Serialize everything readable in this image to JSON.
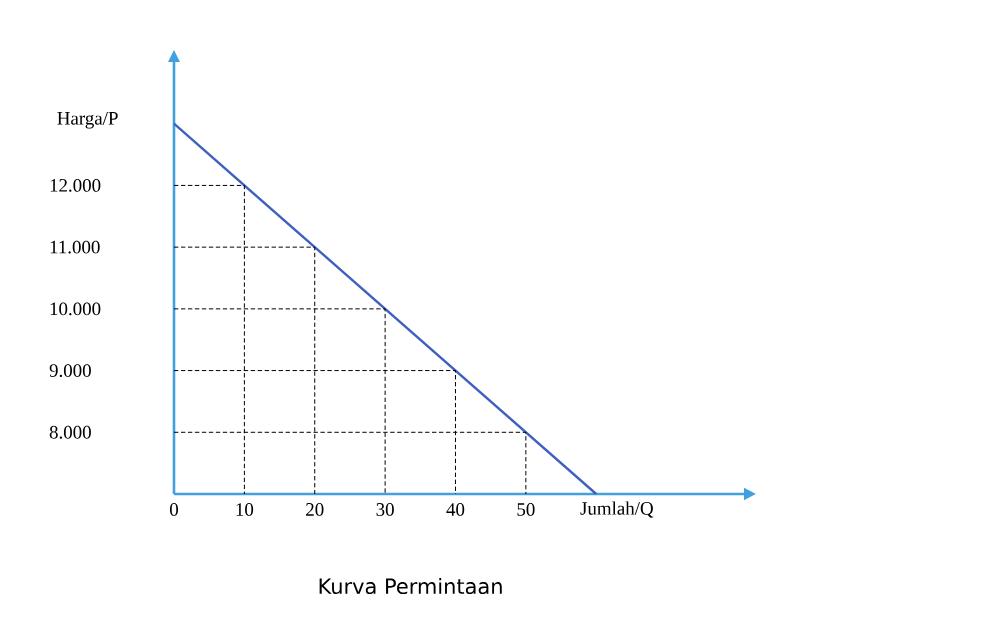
{
  "chart_data": {
    "type": "line",
    "title": "Kurva Permintaan",
    "xlabel": "Jumlah/Q",
    "ylabel": "Harga/P",
    "xlim": [
      0,
      81
    ],
    "ylim": [
      7000,
      14000
    ],
    "xticks": [
      0,
      10,
      20,
      30,
      40,
      50
    ],
    "yticks": [
      {
        "value": 8000,
        "label": "8.000"
      },
      {
        "value": 9000,
        "label": "9.000"
      },
      {
        "value": 10000,
        "label": "10.000"
      },
      {
        "value": 11000,
        "label": "11.000"
      },
      {
        "value": 12000,
        "label": "12.000"
      }
    ],
    "marker": "none",
    "series": [
      {
        "color": "#4060c0",
        "x": [
          0,
          60
        ],
        "values": [
          13000,
          7000
        ]
      },
      {
        "color": "#000000",
        "line_style": "dashed",
        "x": [
          0,
          10,
          10
        ],
        "values": [
          12000,
          12000,
          7000
        ]
      },
      {
        "color": "#000000",
        "line_style": "dashed",
        "x": [
          0,
          20,
          20
        ],
        "values": [
          11000,
          11000,
          7000
        ]
      },
      {
        "color": "#000000",
        "line_style": "dashed",
        "x": [
          0,
          30,
          30
        ],
        "values": [
          10000,
          10000,
          7000
        ]
      },
      {
        "color": "#000000",
        "line_style": "dashed",
        "x": [
          0,
          40,
          40
        ],
        "values": [
          9000,
          9000,
          7000
        ]
      },
      {
        "color": "#000000",
        "line_style": "dashed",
        "x": [
          0,
          50,
          50
        ],
        "values": [
          8000,
          8000,
          7000
        ]
      }
    ]
  }
}
